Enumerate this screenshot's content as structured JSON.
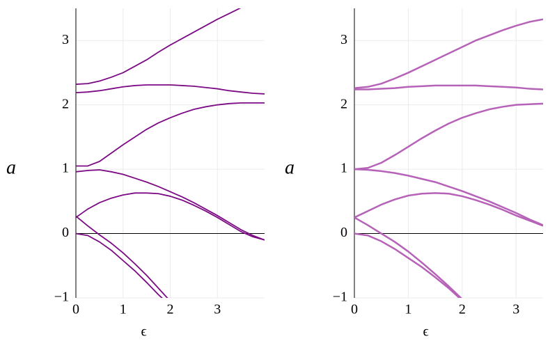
{
  "chart_data": [
    {
      "type": "line",
      "xlabel": "ϵ",
      "ylabel": "a",
      "x": [
        0,
        0.25,
        0.5,
        0.75,
        1,
        1.25,
        1.5,
        1.75,
        2,
        2.25,
        2.5,
        2.75,
        3,
        3.25,
        3.5,
        3.75,
        4
      ],
      "xlim": [
        0,
        4
      ],
      "ylim": [
        -1,
        3.5
      ],
      "xticks": [
        0,
        1,
        2,
        3
      ],
      "yticks": [
        {
          "value": -1,
          "label": "−1"
        },
        0,
        1,
        2,
        3
      ],
      "grid": true,
      "series": [
        {
          "color": "#7b0a84",
          "values": [
            0,
            -0.03,
            -0.13,
            -0.26,
            -0.42,
            -0.58,
            -0.76,
            -0.95,
            -1.12,
            null,
            null,
            null,
            null,
            null,
            null,
            null,
            null
          ]
        },
        {
          "color": "#7b0a84",
          "values": [
            0.27,
            0.12,
            -0.02,
            -0.15,
            -0.3,
            -0.47,
            -0.65,
            -0.85,
            -1.05,
            null,
            null,
            null,
            null,
            null,
            null,
            null,
            null
          ]
        },
        {
          "color": "#7b0a84",
          "values": [
            0.25,
            0.38,
            0.48,
            0.55,
            0.6,
            0.63,
            0.63,
            0.62,
            0.58,
            0.52,
            0.44,
            0.35,
            0.25,
            0.14,
            0.03,
            -0.05,
            -0.1
          ]
        },
        {
          "color": "#7b0a84",
          "values": [
            1.05,
            1.05,
            1.12,
            1.25,
            1.38,
            1.5,
            1.62,
            1.72,
            1.8,
            1.87,
            1.93,
            1.97,
            2.0,
            2.02,
            2.03,
            2.03,
            2.03
          ]
        },
        {
          "color": "#7b0a84",
          "values": [
            0.96,
            0.98,
            0.99,
            0.96,
            0.92,
            0.86,
            0.8,
            0.73,
            0.65,
            0.57,
            0.48,
            0.38,
            0.28,
            0.17,
            0.06,
            -0.03,
            -0.1
          ]
        },
        {
          "color": "#7b0a84",
          "values": [
            2.32,
            2.33,
            2.37,
            2.43,
            2.5,
            2.6,
            2.7,
            2.82,
            2.93,
            3.03,
            3.13,
            3.23,
            3.33,
            3.42,
            3.51,
            null,
            null
          ]
        },
        {
          "color": "#7b0a84",
          "values": [
            2.19,
            2.2,
            2.22,
            2.25,
            2.28,
            2.3,
            2.31,
            2.31,
            2.31,
            2.3,
            2.29,
            2.27,
            2.25,
            2.22,
            2.2,
            2.18,
            2.17
          ]
        }
      ]
    },
    {
      "type": "line",
      "xlabel": "ϵ",
      "ylabel": "a",
      "x": [
        0,
        0.25,
        0.5,
        0.75,
        1,
        1.25,
        1.5,
        1.75,
        2,
        2.25,
        2.5,
        2.75,
        3,
        3.25,
        3.5
      ],
      "xlim": [
        0,
        3.5
      ],
      "ylim": [
        -1,
        3.5
      ],
      "xticks": [
        0,
        1,
        2,
        3
      ],
      "yticks": [
        {
          "value": -1,
          "label": "−1"
        },
        0,
        1,
        2,
        3
      ],
      "grid": true,
      "series": [
        {
          "color": "#b662b8",
          "values": [
            0,
            -0.03,
            -0.12,
            -0.24,
            -0.38,
            -0.52,
            -0.68,
            -0.85,
            -1.04,
            null,
            null,
            null,
            null,
            null,
            null
          ]
        },
        {
          "color": "#b662b8",
          "values": [
            0.25,
            0.13,
            0.0,
            -0.13,
            -0.28,
            -0.45,
            -0.63,
            -0.82,
            -1.02,
            null,
            null,
            null,
            null,
            null,
            null
          ]
        },
        {
          "color": "#b662b8",
          "values": [
            0.25,
            0.35,
            0.45,
            0.53,
            0.59,
            0.62,
            0.63,
            0.62,
            0.58,
            0.52,
            0.45,
            0.37,
            0.28,
            0.2,
            0.12
          ]
        },
        {
          "color": "#b662b8",
          "values": [
            1,
            1.02,
            1.1,
            1.22,
            1.35,
            1.48,
            1.6,
            1.71,
            1.8,
            1.87,
            1.93,
            1.97,
            2.0,
            2.01,
            2.02
          ]
        },
        {
          "color": "#b662b8",
          "values": [
            1,
            0.99,
            0.97,
            0.94,
            0.9,
            0.85,
            0.8,
            0.73,
            0.66,
            0.58,
            0.5,
            0.41,
            0.32,
            0.22,
            0.13
          ]
        },
        {
          "color": "#b662b8",
          "values": [
            2.26,
            2.28,
            2.33,
            2.41,
            2.5,
            2.6,
            2.7,
            2.8,
            2.9,
            3.0,
            3.08,
            3.16,
            3.23,
            3.29,
            3.33
          ]
        },
        {
          "color": "#b662b8",
          "values": [
            2.24,
            2.24,
            2.25,
            2.26,
            2.28,
            2.29,
            2.3,
            2.3,
            2.3,
            2.3,
            2.29,
            2.28,
            2.27,
            2.25,
            2.24
          ]
        }
      ]
    }
  ]
}
